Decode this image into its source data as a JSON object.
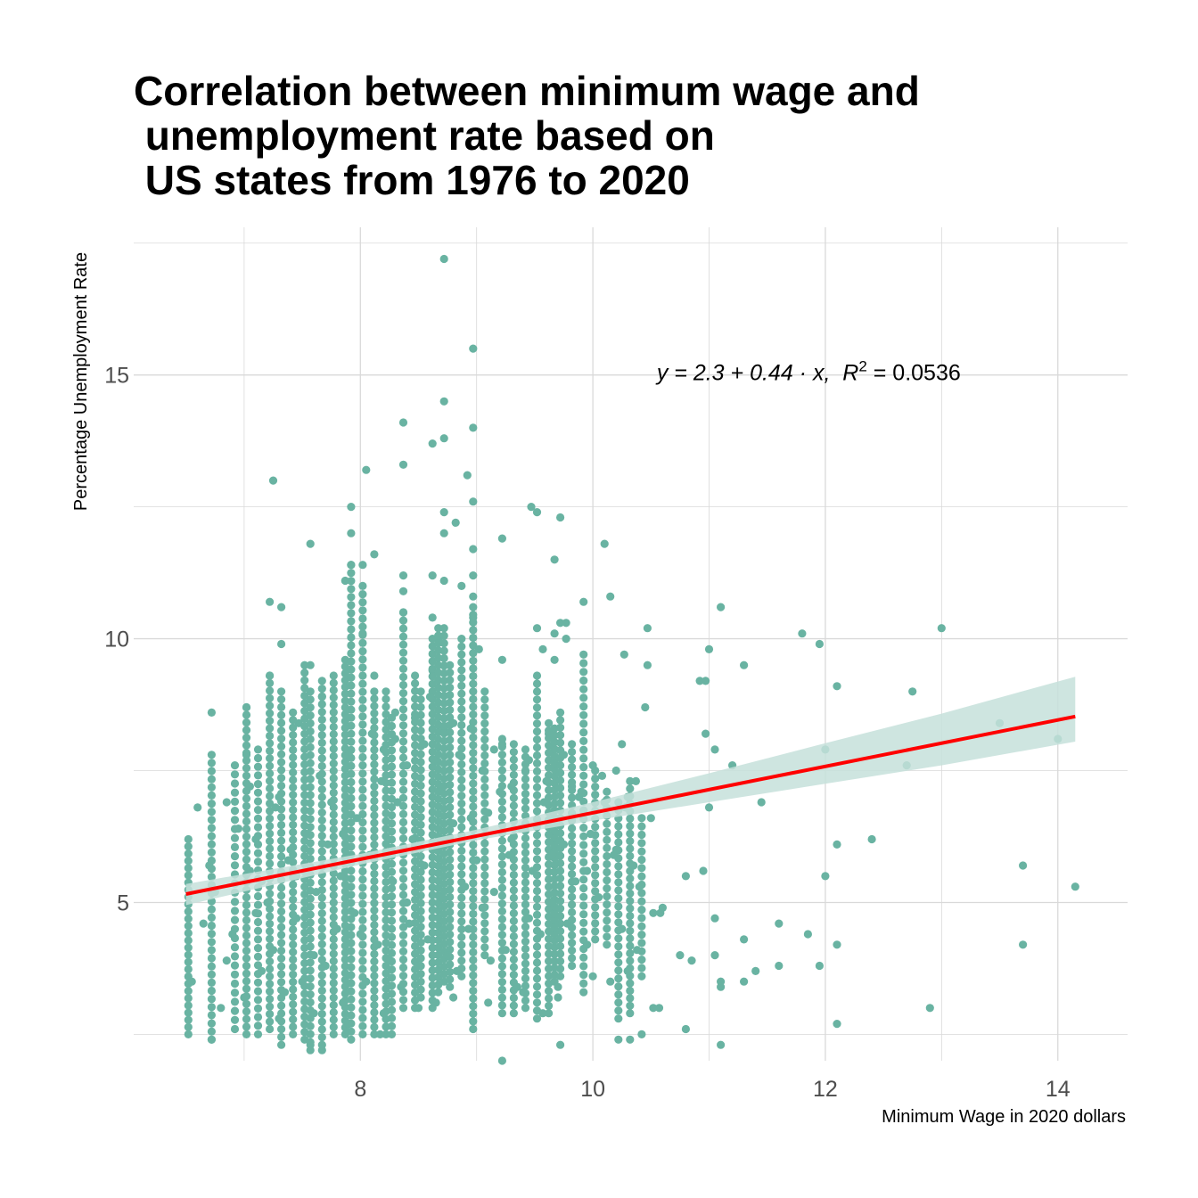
{
  "colors": {
    "points": "#69b3a2",
    "fit_line": "#ff0000",
    "ribbon": "#c5e0da",
    "grid": "#d9d9d9",
    "background": "#ffffff"
  },
  "chart_data": {
    "type": "scatter",
    "title_lines": [
      "Correlation between minimum wage and",
      " unemployment rate based on",
      " US states from 1976 to 2020"
    ],
    "xlabel": "Minimum Wage in 2020 dollars",
    "ylabel": "Percentage Unemployment Rate",
    "xlim": [
      6.05,
      14.6
    ],
    "ylim": [
      2.0,
      17.8
    ],
    "x_ticks": [
      8,
      10,
      12,
      14
    ],
    "x_tick_labels": [
      "8",
      "10",
      "12",
      "14"
    ],
    "y_ticks": [
      5,
      10,
      15
    ],
    "y_tick_labels": [
      "5",
      "10",
      "15"
    ],
    "minor_x": [
      7,
      9,
      11,
      13
    ],
    "minor_y": [
      2.5,
      7.5,
      12.5,
      17.5
    ],
    "grid": true,
    "annotation": {
      "prefix": "y = 2.3 + 0.44 · x,  ",
      "r_symbol": "R",
      "r_sup": "2",
      "suffix": " = 0.0536",
      "x": 10.55,
      "y": 14.9
    },
    "fit": {
      "intercept": 2.3,
      "slope": 0.44,
      "x_range": [
        6.5,
        14.15
      ]
    },
    "ribbon": [
      {
        "x": 6.5,
        "lo": 4.95,
        "hi": 5.35
      },
      {
        "x": 8.0,
        "lo": 5.72,
        "hi": 5.92
      },
      {
        "x": 9.0,
        "lo": 6.18,
        "hi": 6.38
      },
      {
        "x": 10.0,
        "lo": 6.55,
        "hi": 6.9
      },
      {
        "x": 11.0,
        "lo": 6.9,
        "hi": 7.45
      },
      {
        "x": 12.0,
        "lo": 7.25,
        "hi": 8.02
      },
      {
        "x": 13.0,
        "lo": 7.6,
        "hi": 8.58
      },
      {
        "x": 14.15,
        "lo": 8.05,
        "hi": 9.28
      }
    ],
    "points": [
      [
        8.72,
        17.2
      ],
      [
        8.97,
        15.5
      ],
      [
        8.72,
        14.5
      ],
      [
        8.37,
        14.1
      ],
      [
        8.97,
        14.0
      ],
      [
        8.62,
        13.7
      ],
      [
        8.72,
        13.8
      ],
      [
        8.37,
        13.3
      ],
      [
        8.05,
        13.2
      ],
      [
        7.25,
        13.0
      ],
      [
        8.92,
        13.1
      ],
      [
        8.97,
        12.6
      ],
      [
        7.92,
        12.5
      ],
      [
        8.72,
        12.4
      ],
      [
        9.47,
        12.5
      ],
      [
        9.52,
        12.4
      ],
      [
        9.72,
        12.3
      ],
      [
        8.82,
        12.2
      ],
      [
        7.92,
        12.0
      ],
      [
        8.72,
        12.0
      ],
      [
        9.22,
        11.9
      ],
      [
        7.57,
        11.8
      ],
      [
        10.1,
        11.8
      ],
      [
        8.97,
        11.7
      ],
      [
        8.12,
        11.6
      ],
      [
        9.67,
        11.5
      ],
      [
        7.92,
        11.4
      ],
      [
        8.02,
        11.4
      ],
      [
        8.37,
        11.2
      ],
      [
        8.62,
        11.2
      ],
      [
        8.97,
        11.2
      ],
      [
        7.87,
        11.1
      ],
      [
        8.72,
        11.1
      ],
      [
        8.87,
        11.0
      ],
      [
        8.37,
        10.9
      ],
      [
        8.97,
        10.8
      ],
      [
        10.15,
        10.8
      ],
      [
        7.22,
        10.7
      ],
      [
        7.32,
        10.6
      ],
      [
        9.92,
        10.7
      ],
      [
        11.1,
        10.6
      ],
      [
        8.37,
        10.5
      ],
      [
        8.62,
        10.4
      ],
      [
        8.97,
        10.4
      ],
      [
        9.72,
        10.3
      ],
      [
        9.77,
        10.3
      ],
      [
        10.47,
        10.2
      ],
      [
        9.52,
        10.2
      ],
      [
        11.8,
        10.1
      ],
      [
        13.0,
        10.2
      ],
      [
        9.67,
        10.1
      ],
      [
        8.02,
        10.1
      ],
      [
        8.67,
        10.0
      ],
      [
        9.77,
        10.0
      ],
      [
        11.95,
        9.9
      ],
      [
        7.32,
        9.9
      ],
      [
        9.02,
        9.8
      ],
      [
        9.57,
        9.8
      ],
      [
        10.27,
        9.7
      ],
      [
        11.0,
        9.8
      ],
      [
        9.67,
        9.6
      ],
      [
        10.47,
        9.5
      ],
      [
        9.22,
        9.6
      ],
      [
        11.3,
        9.5
      ],
      [
        7.57,
        9.5
      ],
      [
        8.12,
        9.3
      ],
      [
        8.62,
        9.4
      ],
      [
        7.22,
        9.3
      ],
      [
        10.92,
        9.2
      ],
      [
        10.97,
        9.2
      ],
      [
        12.1,
        9.1
      ],
      [
        7.02,
        8.7
      ],
      [
        7.67,
        8.9
      ],
      [
        10.97,
        8.2
      ],
      [
        12.75,
        9.0
      ],
      [
        8.47,
        8.5
      ],
      [
        8.72,
        8.3
      ],
      [
        9.62,
        8.2
      ],
      [
        10.45,
        8.7
      ],
      [
        6.72,
        8.6
      ],
      [
        7.47,
        8.4
      ],
      [
        13.5,
        8.4
      ],
      [
        8.3,
        8.1
      ],
      [
        10.25,
        8.0
      ],
      [
        9.22,
        8.0
      ],
      [
        14.0,
        8.1
      ],
      [
        11.05,
        7.9
      ],
      [
        12.0,
        7.9
      ],
      [
        7.02,
        7.8
      ],
      [
        10.2,
        7.5
      ],
      [
        11.2,
        7.6
      ],
      [
        12.7,
        7.6
      ],
      [
        9.42,
        7.5
      ],
      [
        9.82,
        7.2
      ],
      [
        10.37,
        7.3
      ],
      [
        11.45,
        6.9
      ],
      [
        10.5,
        6.6
      ],
      [
        12.4,
        6.2
      ],
      [
        11.0,
        6.8
      ],
      [
        12.1,
        6.1
      ],
      [
        13.7,
        5.7
      ],
      [
        10.95,
        5.6
      ],
      [
        12.0,
        5.5
      ],
      [
        10.8,
        5.5
      ],
      [
        14.15,
        5.3
      ],
      [
        10.6,
        4.9
      ],
      [
        11.05,
        4.7
      ],
      [
        11.6,
        4.6
      ],
      [
        10.52,
        4.8
      ],
      [
        10.58,
        4.8
      ],
      [
        11.3,
        4.3
      ],
      [
        11.85,
        4.4
      ],
      [
        13.7,
        4.2
      ],
      [
        12.1,
        4.2
      ],
      [
        10.75,
        4.0
      ],
      [
        10.85,
        3.9
      ],
      [
        11.05,
        4.0
      ],
      [
        11.95,
        3.8
      ],
      [
        11.4,
        3.7
      ],
      [
        11.6,
        3.8
      ],
      [
        11.3,
        3.5
      ],
      [
        11.1,
        3.5
      ],
      [
        11.1,
        3.4
      ],
      [
        10.52,
        3.0
      ],
      [
        10.57,
        3.0
      ],
      [
        12.9,
        3.0
      ],
      [
        12.1,
        2.7
      ],
      [
        10.8,
        2.6
      ],
      [
        10.42,
        2.5
      ],
      [
        10.22,
        2.4
      ],
      [
        10.32,
        2.4
      ],
      [
        9.57,
        2.9
      ],
      [
        9.72,
        2.3
      ],
      [
        9.22,
        2.0
      ],
      [
        11.1,
        2.3
      ],
      [
        6.72,
        2.4
      ],
      [
        7.57,
        2.3
      ],
      [
        7.67,
        2.2
      ],
      [
        8.17,
        2.5
      ]
    ],
    "columns": [
      {
        "x": 6.52,
        "from": 2.5,
        "to": 6.2,
        "n": 28
      },
      {
        "x": 6.72,
        "from": 2.4,
        "to": 7.8,
        "n": 36
      },
      {
        "x": 6.92,
        "from": 2.6,
        "to": 7.6,
        "n": 30
      },
      {
        "x": 7.02,
        "from": 2.5,
        "to": 8.7,
        "n": 44
      },
      {
        "x": 7.12,
        "from": 2.5,
        "to": 7.9,
        "n": 34
      },
      {
        "x": 7.22,
        "from": 2.6,
        "to": 9.3,
        "n": 48
      },
      {
        "x": 7.32,
        "from": 2.3,
        "to": 9.0,
        "n": 46
      },
      {
        "x": 7.42,
        "from": 2.5,
        "to": 8.6,
        "n": 44
      },
      {
        "x": 7.52,
        "from": 2.4,
        "to": 9.5,
        "n": 50
      },
      {
        "x": 7.57,
        "from": 2.2,
        "to": 9.0,
        "n": 46
      },
      {
        "x": 7.67,
        "from": 2.3,
        "to": 9.2,
        "n": 48
      },
      {
        "x": 7.77,
        "from": 2.5,
        "to": 9.3,
        "n": 50
      },
      {
        "x": 7.87,
        "from": 2.5,
        "to": 9.6,
        "n": 56
      },
      {
        "x": 7.92,
        "from": 2.4,
        "to": 11.4,
        "n": 60
      },
      {
        "x": 8.02,
        "from": 2.5,
        "to": 11.0,
        "n": 56
      },
      {
        "x": 8.12,
        "from": 2.5,
        "to": 9.0,
        "n": 48
      },
      {
        "x": 8.22,
        "from": 2.5,
        "to": 9.0,
        "n": 46
      },
      {
        "x": 8.27,
        "from": 2.5,
        "to": 8.5,
        "n": 40
      },
      {
        "x": 8.37,
        "from": 3.0,
        "to": 10.5,
        "n": 50
      },
      {
        "x": 8.47,
        "from": 3.0,
        "to": 9.3,
        "n": 44
      },
      {
        "x": 8.52,
        "from": 3.2,
        "to": 9.0,
        "n": 40
      },
      {
        "x": 8.62,
        "from": 3.0,
        "to": 10.0,
        "n": 50
      },
      {
        "x": 8.67,
        "from": 3.3,
        "to": 10.2,
        "n": 50
      },
      {
        "x": 8.72,
        "from": 3.5,
        "to": 10.2,
        "n": 48
      },
      {
        "x": 8.77,
        "from": 3.4,
        "to": 9.5,
        "n": 44
      },
      {
        "x": 8.87,
        "from": 3.6,
        "to": 10.0,
        "n": 44
      },
      {
        "x": 8.97,
        "from": 2.6,
        "to": 10.6,
        "n": 56
      },
      {
        "x": 9.07,
        "from": 4.0,
        "to": 9.0,
        "n": 34
      },
      {
        "x": 9.22,
        "from": 2.9,
        "to": 8.1,
        "n": 36
      },
      {
        "x": 9.32,
        "from": 2.9,
        "to": 8.0,
        "n": 36
      },
      {
        "x": 9.42,
        "from": 3.0,
        "to": 7.9,
        "n": 36
      },
      {
        "x": 9.52,
        "from": 2.8,
        "to": 9.3,
        "n": 44
      },
      {
        "x": 9.62,
        "from": 2.9,
        "to": 8.4,
        "n": 40
      },
      {
        "x": 9.67,
        "from": 3.5,
        "to": 8.3,
        "n": 38
      },
      {
        "x": 9.72,
        "from": 3.6,
        "to": 8.6,
        "n": 36
      },
      {
        "x": 9.82,
        "from": 3.8,
        "to": 8.0,
        "n": 30
      },
      {
        "x": 9.92,
        "from": 3.3,
        "to": 9.7,
        "n": 40
      },
      {
        "x": 10.02,
        "from": 4.3,
        "to": 7.5,
        "n": 22
      },
      {
        "x": 10.12,
        "from": 4.2,
        "to": 7.1,
        "n": 20
      },
      {
        "x": 10.22,
        "from": 2.8,
        "to": 6.9,
        "n": 28
      },
      {
        "x": 10.32,
        "from": 2.9,
        "to": 7.3,
        "n": 32
      },
      {
        "x": 10.42,
        "from": 3.6,
        "to": 6.6,
        "n": 20
      }
    ],
    "scatter": [
      [
        6.55,
        3.5
      ],
      [
        6.65,
        4.6
      ],
      [
        6.85,
        3.9
      ],
      [
        6.9,
        4.4
      ],
      [
        7.05,
        5.6
      ],
      [
        7.15,
        3.7
      ],
      [
        7.2,
        5.0
      ],
      [
        7.25,
        4.1
      ],
      [
        7.27,
        6.8
      ],
      [
        7.35,
        3.3
      ],
      [
        7.38,
        5.8
      ],
      [
        7.45,
        4.7
      ],
      [
        7.5,
        3.5
      ],
      [
        7.55,
        6.3
      ],
      [
        7.6,
        4.0
      ],
      [
        7.62,
        5.2
      ],
      [
        7.7,
        3.8
      ],
      [
        7.72,
        6.1
      ],
      [
        7.8,
        4.5
      ],
      [
        7.83,
        5.5
      ],
      [
        7.85,
        3.1
      ],
      [
        7.95,
        4.8
      ],
      [
        7.97,
        6.6
      ],
      [
        8.05,
        3.5
      ],
      [
        8.08,
        5.9
      ],
      [
        8.15,
        4.2
      ],
      [
        8.18,
        7.3
      ],
      [
        8.25,
        3.9
      ],
      [
        8.28,
        5.4
      ],
      [
        8.32,
        6.9
      ],
      [
        8.35,
        3.4
      ],
      [
        8.42,
        4.6
      ],
      [
        8.45,
        6.2
      ],
      [
        8.5,
        3.8
      ],
      [
        8.55,
        5.7
      ],
      [
        8.58,
        4.3
      ],
      [
        8.63,
        7.7
      ],
      [
        8.65,
        3.1
      ],
      [
        8.7,
        5.1
      ],
      [
        8.75,
        4.0
      ],
      [
        8.8,
        6.5
      ],
      [
        8.83,
        3.7
      ],
      [
        8.9,
        5.3
      ],
      [
        8.93,
        4.5
      ],
      [
        9.0,
        5.8
      ],
      [
        9.05,
        4.9
      ],
      [
        9.1,
        6.7
      ],
      [
        9.12,
        3.9
      ],
      [
        9.15,
        5.2
      ],
      [
        9.2,
        7.1
      ],
      [
        9.25,
        4.1
      ],
      [
        9.28,
        5.9
      ],
      [
        9.35,
        3.4
      ],
      [
        9.38,
        6.4
      ],
      [
        9.45,
        4.7
      ],
      [
        9.48,
        5.6
      ],
      [
        9.55,
        4.4
      ],
      [
        9.58,
        6.9
      ],
      [
        9.65,
        5.0
      ],
      [
        9.7,
        3.2
      ],
      [
        9.75,
        6.1
      ],
      [
        9.78,
        4.6
      ],
      [
        9.85,
        5.4
      ],
      [
        9.88,
        7.0
      ],
      [
        9.95,
        4.2
      ],
      [
        9.98,
        6.3
      ],
      [
        10.05,
        5.1
      ],
      [
        10.08,
        7.4
      ],
      [
        10.15,
        3.5
      ],
      [
        10.18,
        5.9
      ],
      [
        10.25,
        4.5
      ],
      [
        10.28,
        6.8
      ],
      [
        10.35,
        5.7
      ],
      [
        10.38,
        4.1
      ],
      [
        7.1,
        6.2
      ],
      [
        7.3,
        7.0
      ],
      [
        7.4,
        6.0
      ],
      [
        7.65,
        7.4
      ],
      [
        7.75,
        6.9
      ],
      [
        7.9,
        7.8
      ],
      [
        8.1,
        8.2
      ],
      [
        8.2,
        7.9
      ],
      [
        8.3,
        8.6
      ],
      [
        8.4,
        7.6
      ],
      [
        8.55,
        8.0
      ],
      [
        8.6,
        8.9
      ],
      [
        8.7,
        7.2
      ],
      [
        8.8,
        8.4
      ],
      [
        8.85,
        7.8
      ],
      [
        8.95,
        8.3
      ],
      [
        9.05,
        7.5
      ],
      [
        9.15,
        7.9
      ],
      [
        9.3,
        7.2
      ],
      [
        9.45,
        7.7
      ],
      [
        9.6,
        7.3
      ],
      [
        9.75,
        7.8
      ],
      [
        9.9,
        7.1
      ],
      [
        10.0,
        7.6
      ],
      [
        10.1,
        6.9
      ],
      [
        10.3,
        7.0
      ],
      [
        6.8,
        3.0
      ],
      [
        7.0,
        3.2
      ],
      [
        7.3,
        2.8
      ],
      [
        7.6,
        2.9
      ],
      [
        7.9,
        2.7
      ],
      [
        8.2,
        2.9
      ],
      [
        8.5,
        3.0
      ],
      [
        8.8,
        3.2
      ],
      [
        9.1,
        3.1
      ],
      [
        9.4,
        3.3
      ],
      [
        9.7,
        3.4
      ],
      [
        10.0,
        3.6
      ],
      [
        10.3,
        3.7
      ],
      [
        6.7,
        5.7
      ],
      [
        6.95,
        6.4
      ],
      [
        7.1,
        4.8
      ],
      [
        7.45,
        5.5
      ],
      [
        7.85,
        6.3
      ],
      [
        8.0,
        4.4
      ],
      [
        8.4,
        5.0
      ],
      [
        8.65,
        6.0
      ],
      [
        8.95,
        6.6
      ],
      [
        9.3,
        6.2
      ],
      [
        9.65,
        5.9
      ],
      [
        9.95,
        5.6
      ],
      [
        10.2,
        6.0
      ],
      [
        10.4,
        5.3
      ],
      [
        6.6,
        6.8
      ],
      [
        6.75,
        5.2
      ],
      [
        6.85,
        6.9
      ],
      [
        7.05,
        7.2
      ],
      [
        7.15,
        5.4
      ]
    ]
  }
}
